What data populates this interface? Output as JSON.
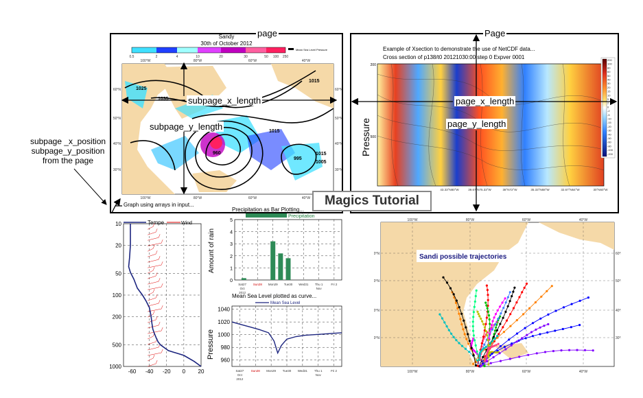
{
  "labels": {
    "page_left": "page",
    "page_right": "Page",
    "subpage_x_length": "subpage_x_length",
    "subpage_y_length": "subpage_y_length",
    "page_x_length": "page_x_length",
    "page_y_length": "page_y_length",
    "position_note": [
      "subpage _x_position",
      "subpage_y_position",
      "from the page"
    ],
    "tutorial_title": "Magics Tutorial"
  },
  "map_panel": {
    "title": "Sandy",
    "date": "30th of October 2012",
    "legend_ticks": [
      "0.5",
      "2",
      "4",
      "10",
      "20",
      "30",
      "50",
      "100",
      "250"
    ],
    "legend_note": "Mean Sea Level Pressure",
    "top_lon": [
      "100°W",
      "80°W",
      "60°W",
      "40°W"
    ],
    "bottom_lon": [
      "100°W",
      "80°W",
      "60°W",
      "40°W"
    ],
    "lat": [
      "60°N",
      "50°N",
      "40°N",
      "30°N"
    ],
    "isobars": [
      "1025",
      "1035",
      "1035",
      "1015",
      "1015",
      "1005",
      "1015",
      "960",
      "995"
    ],
    "caption": "Graph using arrays in input..."
  },
  "xsection_panel": {
    "title_line1": "Example of Xsection to demonstrate the use of NetCDF data...",
    "title_line2": "Cross section of p138/t0 20121030:00 step 0 Expver 0001",
    "ylabel": "Pressure",
    "y_ticks": [
      "200",
      "500"
    ],
    "x_ticks": [
      "43.33°N80°W",
      "39.67°N75.33°W",
      "38°N72°W",
      "35.33°N68°W",
      "32.67°N64°W",
      "30°N60°W"
    ],
    "colorbar_ticks": [
      "200",
      "100",
      "80",
      "60",
      "50",
      "40",
      "30",
      "20",
      "15",
      "10",
      "5",
      "2",
      "0",
      "-2",
      "-5",
      "-10",
      "-15",
      "-20",
      "-30",
      "-40",
      "-50",
      "-60",
      "-80",
      "-100",
      "-200"
    ]
  },
  "tephi_panel": {
    "legend_temp": "Tempe",
    "legend_wind": "Wind",
    "y_ticks": [
      "10",
      "20",
      "50",
      "100",
      "200",
      "500",
      "1000"
    ],
    "x_ticks": [
      "-60",
      "-40",
      "-20",
      "0",
      "20"
    ]
  },
  "precip_panel": {
    "title": "Precipitation as Bar Plotting...",
    "legend": "Precipitation",
    "ylabel": "Amount of rain",
    "y_ticks": [
      "0",
      "1",
      "2",
      "3",
      "4",
      "5"
    ],
    "x_ticks": [
      "Sat27",
      "Sun28",
      "Mon29",
      "Tue30",
      "Wed31",
      "Thu 1",
      "Fri 2"
    ],
    "x_sub": [
      "Oct",
      "2012"
    ],
    "x_sub_thu": "Nov"
  },
  "msl_panel": {
    "title": "Mean Sea Level plotted as curve...",
    "legend": "Mean Sea Level",
    "ylabel": "Pressure",
    "y_ticks": [
      "1040",
      "1020",
      "1000",
      "980",
      "960"
    ],
    "x_ticks": [
      "Sat27",
      "Sun28",
      "Mon29",
      "Tue30",
      "Wed31",
      "Thu 1",
      "Fri 2"
    ],
    "x_sub": [
      "Oct",
      "2012"
    ],
    "x_sub_thu": "Nov"
  },
  "traj_panel": {
    "title": "Sandi possible trajectories",
    "top_lon": [
      "100°W",
      "80°W",
      "60°W",
      "40°W"
    ],
    "bottom_lon": [
      "100°W",
      "80°W",
      "60°W",
      "40°W"
    ],
    "lat": [
      "60°N",
      "50°N",
      "40°N",
      "30°N"
    ]
  },
  "chart_data": [
    {
      "type": "bar",
      "title": "Precipitation as Bar Plotting...",
      "ylabel": "Amount of rain",
      "categories": [
        "Sat27",
        "Sun28",
        "Mon29",
        "Tue30",
        "Wed31",
        "Thu 1",
        "Fri 2"
      ],
      "x": [
        0.1,
        2.0,
        2.5,
        3.0
      ],
      "values": [
        0.15,
        3.2,
        2.2,
        1.8
      ],
      "series": [
        {
          "name": "Precipitation",
          "x": [
            0.1,
            2.0,
            2.5,
            3.0
          ],
          "values": [
            0.15,
            3.2,
            2.2,
            1.8
          ]
        }
      ],
      "ylim": [
        0,
        5
      ],
      "color": "#2e8b57"
    },
    {
      "type": "line",
      "title": "Mean Sea Level plotted as curve...",
      "ylabel": "Pressure",
      "series": [
        {
          "name": "Mean Sea Level",
          "x": [
            0,
            0.5,
            1.0,
            1.5,
            2.0,
            2.3,
            2.5,
            2.7,
            3.0,
            3.5,
            4.0,
            4.5,
            5.0,
            5.5,
            6.0
          ],
          "values": [
            1020,
            1016,
            1012,
            1008,
            1003,
            990,
            971,
            983,
            993,
            997,
            999,
            1000,
            1001,
            1002,
            1003
          ]
        }
      ],
      "categories": [
        "Sat27",
        "Sun28",
        "Mon29",
        "Tue30",
        "Wed31",
        "Thu 1",
        "Fri 2"
      ],
      "ylim": [
        950,
        1045
      ],
      "color": "#1a237e"
    },
    {
      "type": "line",
      "legend": [
        "Tempe",
        "Wind"
      ],
      "y_log": true,
      "ylim": [
        1000,
        10
      ],
      "xlim": [
        -70,
        20
      ],
      "series": [
        {
          "name": "Tempe",
          "x": [
            -62,
            -62,
            -63,
            -64,
            -62,
            -58,
            -54,
            -48,
            -44,
            -40,
            -38,
            -37,
            -36,
            -34,
            -32,
            -30,
            -27,
            -18,
            0,
            12,
            20
          ],
          "values": [
            10,
            20,
            30,
            40,
            48,
            60,
            80,
            100,
            120,
            150,
            200,
            250,
            300,
            350,
            400,
            450,
            500,
            600,
            700,
            850,
            1000
          ]
        }
      ]
    }
  ]
}
